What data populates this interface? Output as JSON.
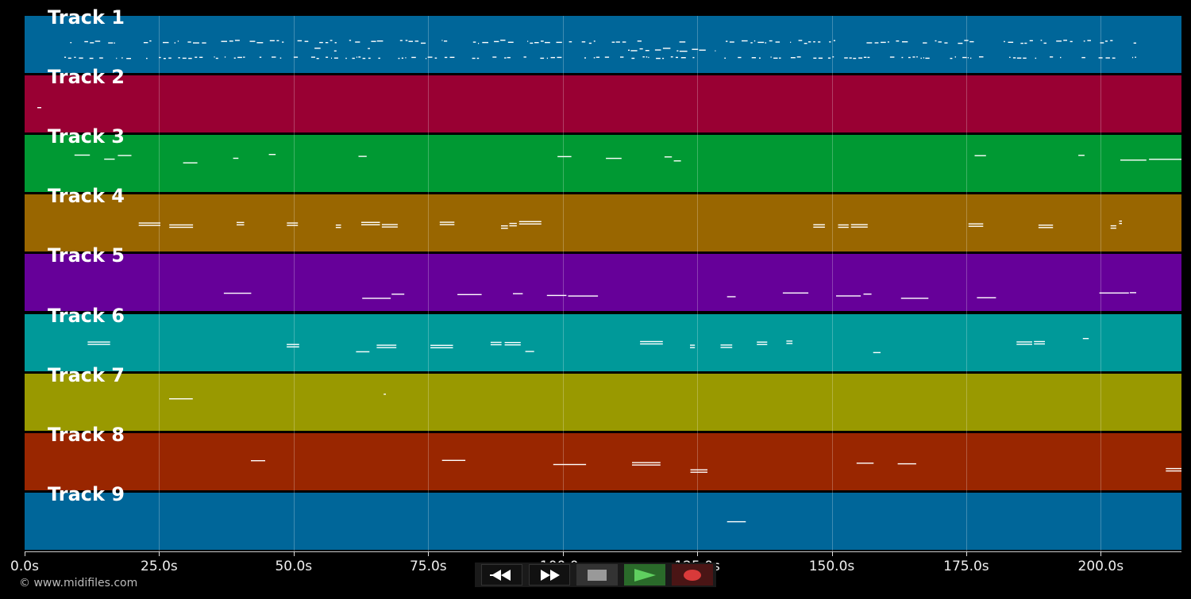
{
  "tracks": [
    {
      "label": "Track 1",
      "color": "#006699"
    },
    {
      "label": "Track 2",
      "color": "#990033"
    },
    {
      "label": "Track 3",
      "color": "#009933"
    },
    {
      "label": "Track 4",
      "color": "#996600"
    },
    {
      "label": "Track 5",
      "color": "#660099"
    },
    {
      "label": "Track 6",
      "color": "#009999"
    },
    {
      "label": "Track 7",
      "color": "#999900"
    },
    {
      "label": "Track 8",
      "color": "#992600"
    },
    {
      "label": "Track 9",
      "color": "#006699"
    }
  ],
  "timeline": {
    "max_seconds": 215,
    "ticks": [
      "0.0s",
      "25.0s",
      "50.0s",
      "75.0s",
      "100.0s",
      "125.0s",
      "150.0s",
      "175.0s",
      "200.0s"
    ],
    "tick_values": [
      0,
      25,
      50,
      75,
      100,
      125,
      150,
      175,
      200
    ]
  },
  "copyright": "© www.midifiles.com",
  "controls": {
    "rewind": "rewind-icon",
    "forward": "fast-forward-icon",
    "stop": "stop-icon",
    "play": "play-icon",
    "record": "record-icon"
  }
}
